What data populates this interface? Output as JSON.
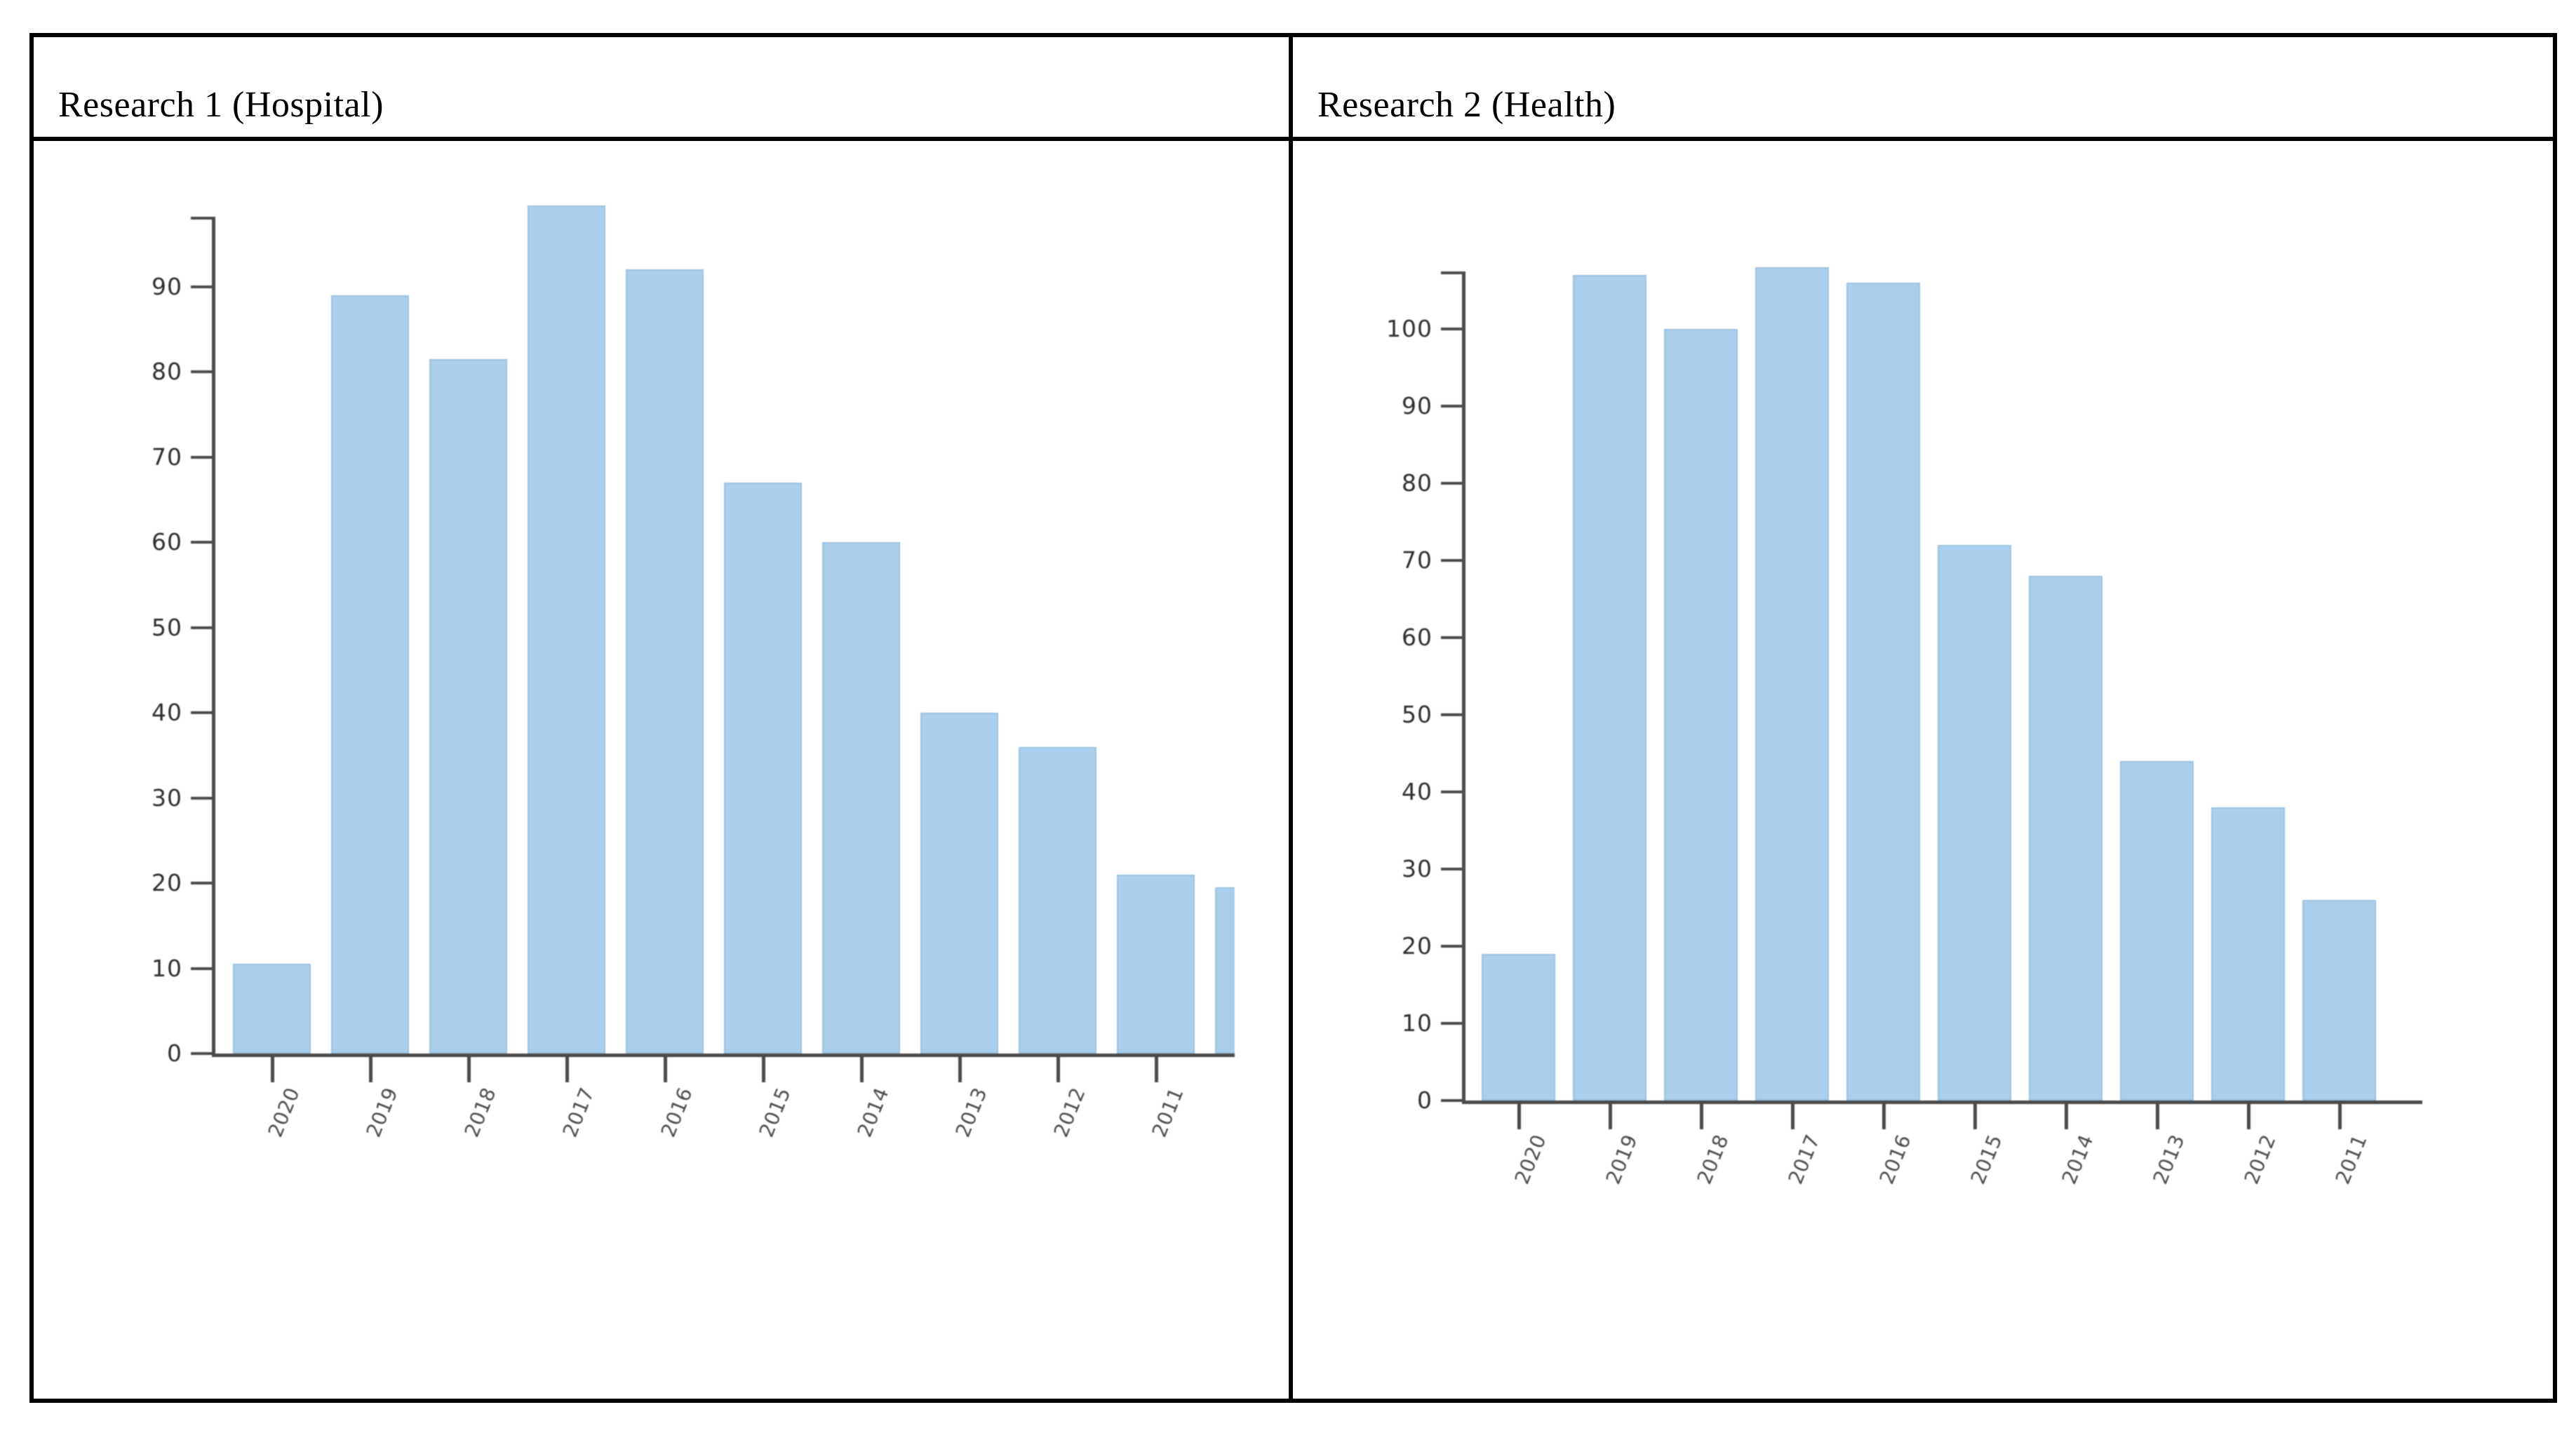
{
  "header": {
    "col1": "Research 1 (Hospital)",
    "col2": "Research 2 (Health)"
  },
  "chart_data": [
    {
      "type": "bar",
      "title": "Research 1 (Hospital)",
      "categories": [
        "2020",
        "2019",
        "2018",
        "2017",
        "2016",
        "2015",
        "2014",
        "2013",
        "2012",
        "2011"
      ],
      "values": [
        10.5,
        89,
        81.5,
        99.5,
        92,
        67,
        60,
        40,
        36,
        21
      ],
      "clipped_partial_bar": {
        "note": "eleventh bar cut off at right edge of chart image",
        "value": 19.5
      },
      "xlabel": "",
      "ylabel": "",
      "ylim": [
        0,
        99.5
      ],
      "yticks": [
        0,
        10,
        20,
        30,
        40,
        50,
        60,
        70,
        80,
        90
      ],
      "grid": false,
      "legend": null,
      "bar_color": "#a9cfec",
      "axis_color": "#4a4a4a"
    },
    {
      "type": "bar",
      "title": "Research 2 (Health)",
      "categories": [
        "2020",
        "2019",
        "2018",
        "2017",
        "2016",
        "2015",
        "2014",
        "2013",
        "2012",
        "2011"
      ],
      "values": [
        19,
        107,
        100,
        108,
        106,
        72,
        68,
        44,
        38,
        26
      ],
      "xlabel": "",
      "ylabel": "",
      "ylim": [
        0,
        108
      ],
      "yticks": [
        0,
        10,
        20,
        30,
        40,
        50,
        60,
        70,
        80,
        90,
        100
      ],
      "grid": false,
      "legend": null,
      "bar_color": "#a9cfec",
      "axis_color": "#4a4a4a"
    }
  ]
}
